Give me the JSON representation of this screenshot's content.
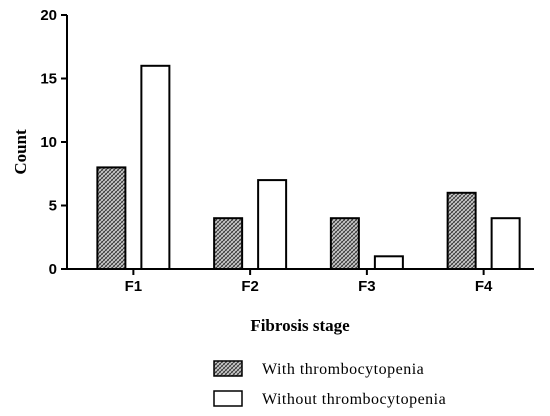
{
  "chart_data": {
    "type": "bar",
    "title": "",
    "xlabel": "Fibrosis stage",
    "ylabel": "Count",
    "categories": [
      "F1",
      "F2",
      "F3",
      "F4"
    ],
    "ylim": [
      0,
      20
    ],
    "yticks": [
      "0",
      "5",
      "10",
      "15",
      "20"
    ],
    "legend_position": "bottom-right",
    "grid": false,
    "series": [
      {
        "name": "With thrombocytopenia",
        "values": [
          8,
          4,
          4,
          6
        ],
        "pattern": "crosshatch",
        "color": "#555555"
      },
      {
        "name": "Without thrombocytopenia",
        "values": [
          16,
          7,
          1,
          4
        ],
        "pattern": "none",
        "color": "#ffffff"
      }
    ]
  }
}
